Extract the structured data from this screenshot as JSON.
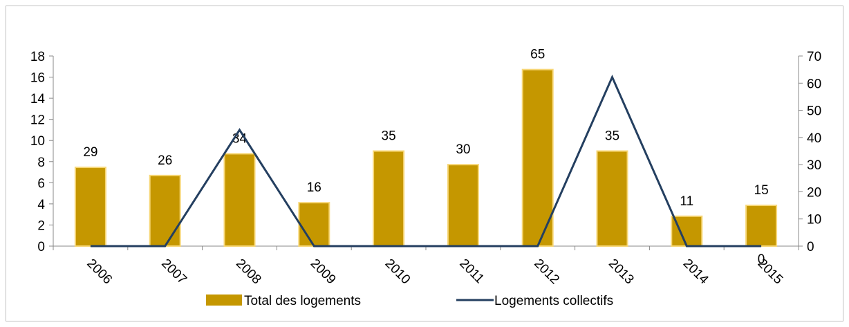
{
  "chart_data": {
    "type": "bar-line",
    "categories": [
      "2006",
      "2007",
      "2008",
      "2009",
      "2010",
      "2011",
      "2012",
      "2013",
      "2014",
      "2015"
    ],
    "series": [
      {
        "name": "Total des logements",
        "type": "bar",
        "axis": "y2",
        "color": "#c59700",
        "values": [
          29,
          26,
          34,
          16,
          35,
          30,
          65,
          35,
          11,
          15
        ]
      },
      {
        "name": "Logements collectifs",
        "type": "line",
        "axis": "y",
        "color": "#243f60",
        "values": [
          0,
          0,
          11,
          0,
          0,
          0,
          0,
          16,
          0,
          0
        ]
      }
    ],
    "ylim": [
      0,
      18
    ],
    "yticks": [
      0,
      2,
      4,
      6,
      8,
      10,
      12,
      14,
      16,
      18
    ],
    "y2lim": [
      0,
      70
    ],
    "y2ticks": [
      0,
      10,
      20,
      30,
      40,
      50,
      60,
      70
    ],
    "legend": "bottom"
  }
}
